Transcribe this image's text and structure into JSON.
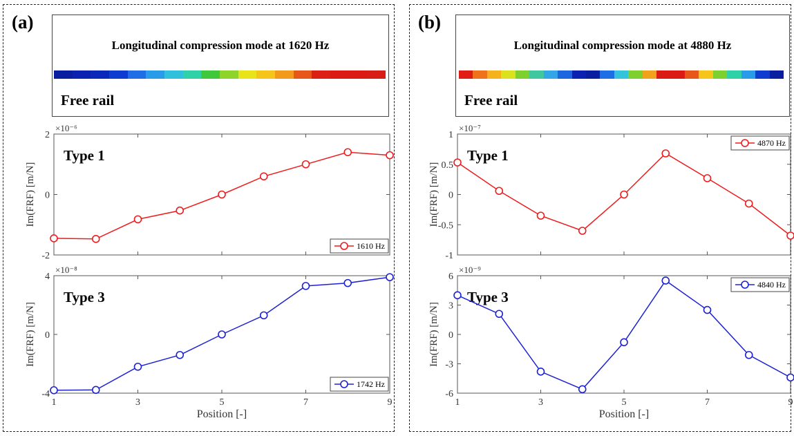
{
  "panels": [
    {
      "label": "(a)",
      "mode_title": "Longitudinal compression mode at 1620 Hz",
      "free_rail_label": "Free rail",
      "rail_colors": [
        "#0a1fa0",
        "#0b22b0",
        "#0c28bb",
        "#0e3bd0",
        "#1e6fe6",
        "#2a9be8",
        "#31c0dc",
        "#2fd2a8",
        "#3ec83a",
        "#8fd42a",
        "#e8e419",
        "#f5c51a",
        "#f49a1a",
        "#e8561a",
        "#dc2016",
        "#dc1a14",
        "#dc1a14",
        "#d81c16"
      ]
    },
    {
      "label": "(b)",
      "mode_title": "Longitudinal compression mode at 4880 Hz",
      "free_rail_label": "Free rail",
      "rail_colors": [
        "#e01c14",
        "#f0721a",
        "#f5b21a",
        "#d9e21c",
        "#7ed02e",
        "#3fc8a0",
        "#32a6e6",
        "#1e66e0",
        "#0b22b0",
        "#0a1fa0",
        "#1e6fe6",
        "#33c4dc",
        "#7ed02e",
        "#f0a21a",
        "#dc1a14",
        "#dc1a14",
        "#e8561a",
        "#f5c51a",
        "#7ed02e",
        "#2fd2a8",
        "#2a9be8",
        "#0e3bd0",
        "#0a1fa0"
      ]
    }
  ],
  "chart_data": [
    {
      "type": "line",
      "title": "Type 1",
      "exponent_label": "×10⁻⁶",
      "ylabel": "Im(FRF)  [m/N]",
      "xlabel": "",
      "xlim": [
        1,
        9
      ],
      "ylim": [
        -2,
        2
      ],
      "xticks": [
        "1",
        "3",
        "5",
        "7",
        "9"
      ],
      "yticks": [
        "2",
        "0",
        "-2"
      ],
      "ytick_values": [
        2,
        0,
        -2
      ],
      "legend_position": "bottom-right",
      "color": "#ee1c1c",
      "series": [
        {
          "name": "1610 Hz",
          "x": [
            1,
            2,
            3,
            4,
            5,
            6,
            7,
            8,
            9
          ],
          "y": [
            -1.45,
            -1.47,
            -0.82,
            -0.53,
            0.0,
            0.6,
            1.0,
            1.4,
            1.3
          ]
        }
      ]
    },
    {
      "type": "line",
      "title": "Type 3",
      "exponent_label": "×10⁻⁸",
      "ylabel": "Im(FRF)  [m/N]",
      "xlabel": "Position [-]",
      "xlim": [
        1,
        9
      ],
      "ylim": [
        -4,
        4
      ],
      "xticks": [
        "1",
        "3",
        "5",
        "7",
        "9"
      ],
      "yticks": [
        "4",
        "0",
        "-4"
      ],
      "ytick_values": [
        4,
        0,
        -4
      ],
      "legend_position": "bottom-right",
      "color": "#1c22d4",
      "series": [
        {
          "name": "1742 Hz",
          "x": [
            1,
            2,
            3,
            4,
            5,
            6,
            7,
            8,
            9
          ],
          "y": [
            -3.8,
            -3.78,
            -2.2,
            -1.4,
            0.0,
            1.3,
            3.3,
            3.5,
            3.9
          ]
        }
      ]
    },
    {
      "type": "line",
      "title": "Type 1",
      "exponent_label": "×10⁻⁷",
      "ylabel": "Im(FRF)  [m/N]",
      "xlabel": "",
      "xlim": [
        1,
        9
      ],
      "ylim": [
        -1,
        1
      ],
      "xticks": [
        "1",
        "3",
        "5",
        "7",
        "9"
      ],
      "yticks": [
        "1",
        "0.5",
        "0",
        "-0.5",
        "-1"
      ],
      "ytick_values": [
        1,
        0.5,
        0,
        -0.5,
        -1
      ],
      "legend_position": "top-right",
      "color": "#ee1c1c",
      "series": [
        {
          "name": "4870 Hz",
          "x": [
            1,
            2,
            3,
            4,
            5,
            6,
            7,
            8,
            9
          ],
          "y": [
            0.53,
            0.06,
            -0.35,
            -0.6,
            0.0,
            0.68,
            0.27,
            -0.15,
            -0.68
          ]
        }
      ]
    },
    {
      "type": "line",
      "title": "Type 3",
      "exponent_label": "×10⁻⁹",
      "ylabel": "Im(FRF)  [m/N]",
      "xlabel": "Position [-]",
      "xlim": [
        1,
        9
      ],
      "ylim": [
        -6,
        6
      ],
      "xticks": [
        "1",
        "3",
        "5",
        "7",
        "9"
      ],
      "yticks": [
        "6",
        "3",
        "0",
        "-3",
        "-6"
      ],
      "ytick_values": [
        6,
        3,
        0,
        -3,
        -6
      ],
      "legend_position": "top-right",
      "color": "#1c22d4",
      "series": [
        {
          "name": "4840 Hz",
          "x": [
            1,
            2,
            3,
            4,
            5,
            6,
            7,
            8,
            9
          ],
          "y": [
            4.0,
            2.1,
            -3.8,
            -5.6,
            -0.8,
            5.5,
            2.5,
            -2.1,
            -4.4
          ]
        }
      ]
    }
  ]
}
